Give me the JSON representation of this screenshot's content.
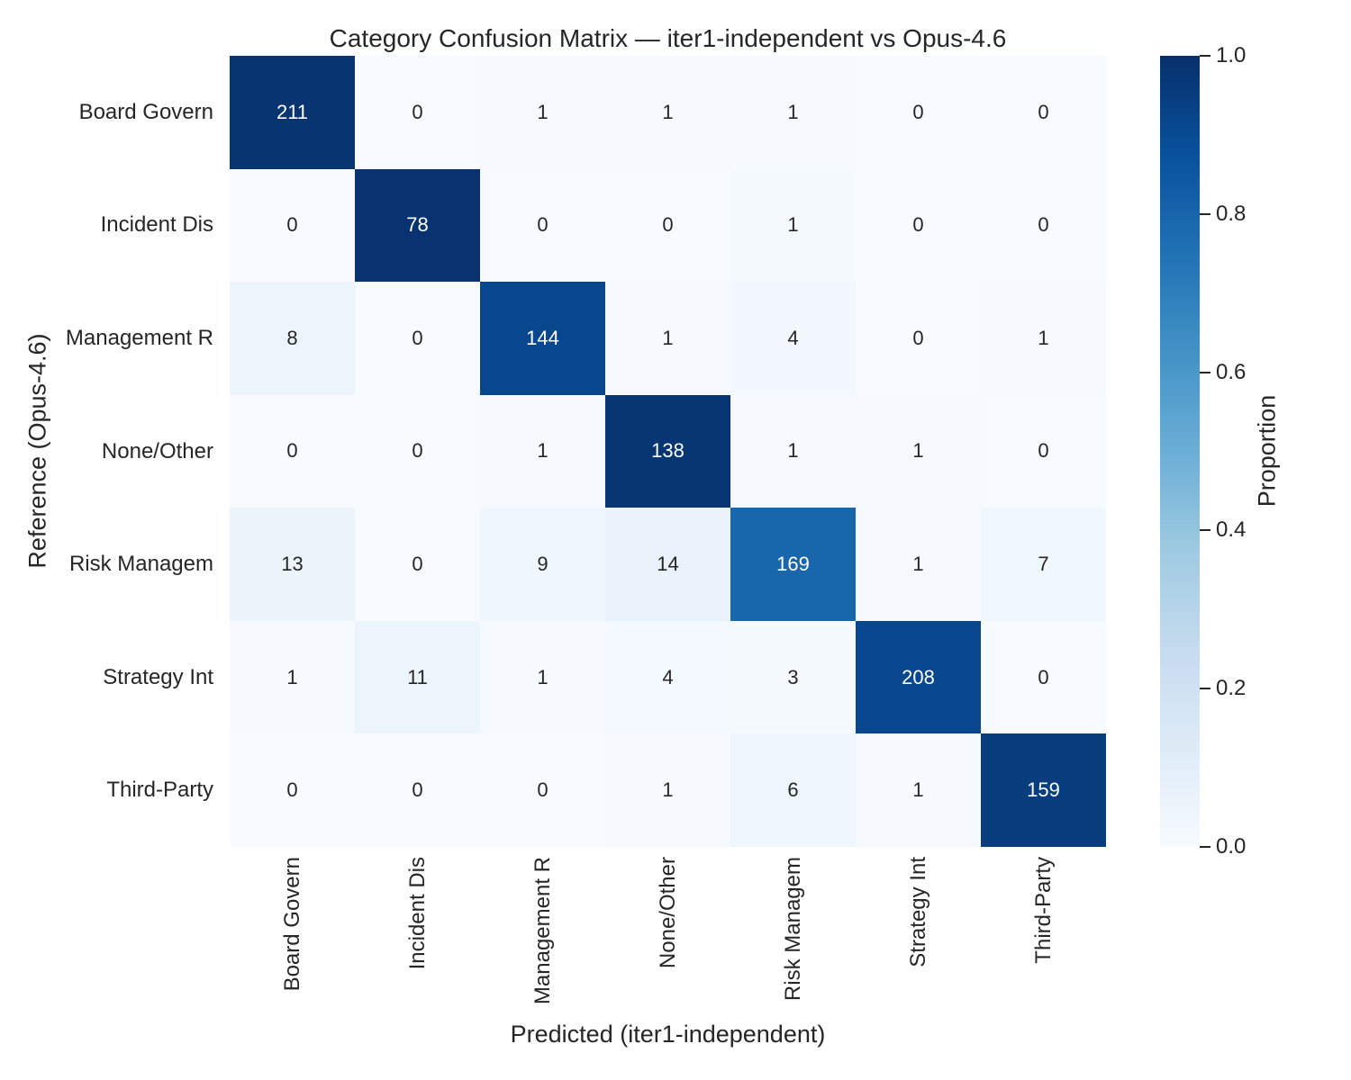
{
  "chart_data": {
    "type": "heatmap",
    "title": "Category Confusion Matrix — iter1-independent vs Opus-4.6",
    "xlabel": "Predicted (iter1-independent)",
    "ylabel": "Reference (Opus-4.6)",
    "categories": [
      "Board Govern",
      "Incident Dis",
      "Management R",
      "None/Other",
      "Risk Managem",
      "Strategy Int",
      "Third-Party"
    ],
    "matrix": [
      [
        211,
        0,
        1,
        1,
        1,
        0,
        0
      ],
      [
        0,
        78,
        0,
        0,
        1,
        0,
        0
      ],
      [
        8,
        0,
        144,
        1,
        4,
        0,
        1
      ],
      [
        0,
        0,
        1,
        138,
        1,
        1,
        0
      ],
      [
        13,
        0,
        9,
        14,
        169,
        1,
        7
      ],
      [
        1,
        11,
        1,
        4,
        3,
        208,
        0
      ],
      [
        0,
        0,
        0,
        1,
        6,
        1,
        159
      ]
    ],
    "normalization": "row",
    "colormap": "Blues",
    "grid_on": false,
    "colorbar": {
      "label": "Proportion",
      "min": 0.0,
      "max": 1.0,
      "ticks": [
        "1.0",
        "0.8",
        "0.6",
        "0.4",
        "0.2",
        "0.0"
      ]
    },
    "colors": {
      "blues_stops": [
        "#f7fbff",
        "#deebf7",
        "#c6dbef",
        "#9ecae1",
        "#6baed6",
        "#4292c6",
        "#2171b5",
        "#08519c",
        "#08306b"
      ],
      "annot_light": "#ffffff",
      "annot_dark": "#262626",
      "text": "#262626",
      "annot_light_threshold": 0.5
    }
  }
}
